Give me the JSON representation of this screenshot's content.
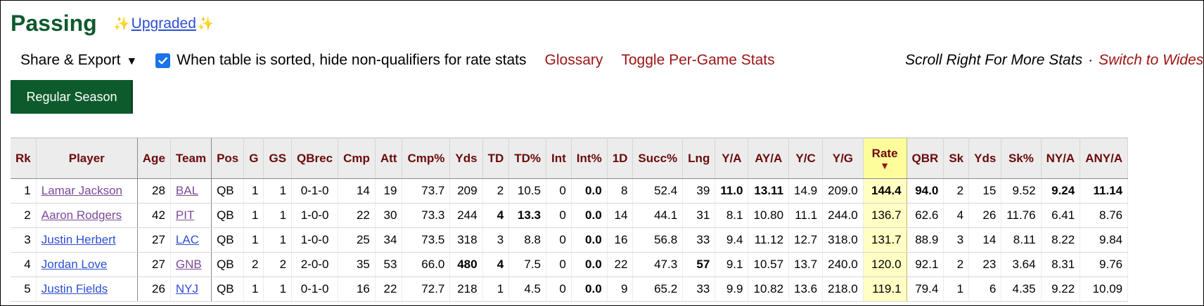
{
  "heading": {
    "title": "Passing",
    "spark": "✨",
    "upgraded": "Upgraded"
  },
  "controls": {
    "share": "Share & Export",
    "caret": "▼",
    "checkbox_checked": true,
    "checkbox_label": "When table is sorted, hide non-qualifiers for rate stats",
    "glossary": "Glossary",
    "toggle": "Toggle Per-Game Stats",
    "scroll_hint": "Scroll Right For More Stats",
    "dot": "·",
    "switch_link": "Switch to Widescreen"
  },
  "season_button": "Regular Season",
  "colors": {
    "brand_green": "#0d5a2c",
    "link_red": "#9b1414",
    "player_link_visited": "#7a4a9a",
    "player_link": "#2d4fd4",
    "sorted_column": "#ffffc4"
  },
  "table": {
    "sorted_column": "Rate",
    "sort_indicator": "▼",
    "columns": [
      "Rk",
      "Player",
      "Age",
      "Team",
      "Pos",
      "G",
      "GS",
      "QBrec",
      "Cmp",
      "Att",
      "Cmp%",
      "Yds",
      "TD",
      "TD%",
      "Int",
      "Int%",
      "1D",
      "Succ%",
      "Lng",
      "Y/A",
      "AY/A",
      "Y/C",
      "Y/G",
      "Rate",
      "QBR",
      "Sk",
      "Yds",
      "Sk%",
      "NY/A",
      "ANY/A"
    ],
    "rows": [
      {
        "rk": "1",
        "player": "Lamar Jackson",
        "age": "28",
        "team": "BAL",
        "pos": "QB",
        "g": "1",
        "gs": "1",
        "qbrec": "0-1-0",
        "cmp": "14",
        "att": "19",
        "cmp_pct": "73.7",
        "yds": "209",
        "td": "2",
        "td_pct": "10.5",
        "int": "0",
        "int_pct": "0.0",
        "first_downs": "8",
        "succ_pct": "52.4",
        "lng": "39",
        "y_a": "11.0",
        "ay_a": "13.11",
        "y_c": "14.9",
        "y_g": "209.0",
        "rate": "144.4",
        "qbr": "94.0",
        "sk": "2",
        "sk_yds": "15",
        "sk_pct": "9.52",
        "ny_a": "9.24",
        "any_a": "11.14"
      },
      {
        "rk": "2",
        "player": "Aaron Rodgers",
        "age": "42",
        "team": "PIT",
        "pos": "QB",
        "g": "1",
        "gs": "1",
        "qbrec": "1-0-0",
        "cmp": "22",
        "att": "30",
        "cmp_pct": "73.3",
        "yds": "244",
        "td": "4",
        "td_pct": "13.3",
        "int": "0",
        "int_pct": "0.0",
        "first_downs": "14",
        "succ_pct": "44.1",
        "lng": "31",
        "y_a": "8.1",
        "ay_a": "10.80",
        "y_c": "11.1",
        "y_g": "244.0",
        "rate": "136.7",
        "qbr": "62.6",
        "sk": "4",
        "sk_yds": "26",
        "sk_pct": "11.76",
        "ny_a": "6.41",
        "any_a": "8.76"
      },
      {
        "rk": "3",
        "player": "Justin Herbert",
        "age": "27",
        "team": "LAC",
        "pos": "QB",
        "g": "1",
        "gs": "1",
        "qbrec": "1-0-0",
        "cmp": "25",
        "att": "34",
        "cmp_pct": "73.5",
        "yds": "318",
        "td": "3",
        "td_pct": "8.8",
        "int": "0",
        "int_pct": "0.0",
        "first_downs": "16",
        "succ_pct": "56.8",
        "lng": "33",
        "y_a": "9.4",
        "ay_a": "11.12",
        "y_c": "12.7",
        "y_g": "318.0",
        "rate": "131.7",
        "qbr": "88.9",
        "sk": "3",
        "sk_yds": "14",
        "sk_pct": "8.11",
        "ny_a": "8.22",
        "any_a": "9.84"
      },
      {
        "rk": "4",
        "player": "Jordan Love",
        "age": "27",
        "team": "GNB",
        "pos": "QB",
        "g": "2",
        "gs": "2",
        "qbrec": "2-0-0",
        "cmp": "35",
        "att": "53",
        "cmp_pct": "66.0",
        "yds": "480",
        "td": "4",
        "td_pct": "7.5",
        "int": "0",
        "int_pct": "0.0",
        "first_downs": "22",
        "succ_pct": "47.3",
        "lng": "57",
        "y_a": "9.1",
        "ay_a": "10.57",
        "y_c": "13.7",
        "y_g": "240.0",
        "rate": "120.0",
        "qbr": "92.1",
        "sk": "2",
        "sk_yds": "23",
        "sk_pct": "3.64",
        "ny_a": "8.31",
        "any_a": "9.76"
      },
      {
        "rk": "5",
        "player": "Justin Fields",
        "age": "26",
        "team": "NYJ",
        "pos": "QB",
        "g": "1",
        "gs": "1",
        "qbrec": "0-1-0",
        "cmp": "16",
        "att": "22",
        "cmp_pct": "72.7",
        "yds": "218",
        "td": "1",
        "td_pct": "4.5",
        "int": "0",
        "int_pct": "0.0",
        "first_downs": "9",
        "succ_pct": "65.2",
        "lng": "33",
        "y_a": "9.9",
        "ay_a": "10.82",
        "y_c": "13.6",
        "y_g": "218.0",
        "rate": "119.1",
        "qbr": "79.4",
        "sk": "1",
        "sk_yds": "6",
        "sk_pct": "4.35",
        "ny_a": "9.22",
        "any_a": "10.09"
      }
    ]
  }
}
